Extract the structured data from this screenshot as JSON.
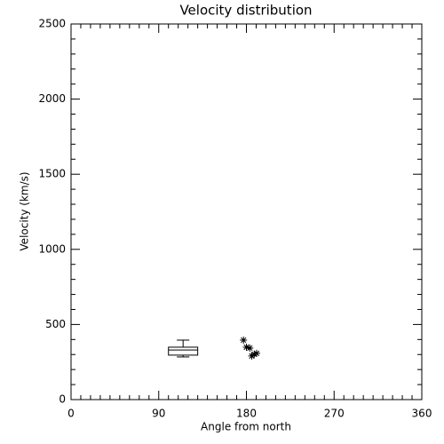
{
  "chart_data": {
    "type": "scatter",
    "title": "Velocity distribution",
    "xlabel": "Angle from north",
    "ylabel": "Velocity (km/s)",
    "x": [
      177,
      180,
      183.5,
      185.5,
      188,
      190.5
    ],
    "values": [
      396,
      349,
      343,
      290,
      302,
      308
    ],
    "marker": "asterisk",
    "color": "#000000",
    "box": {
      "x_left": 100,
      "x_right": 130,
      "min": 284,
      "q1": 296,
      "median": 330,
      "q3": 349,
      "max": 396
    },
    "xlim": [
      0,
      360
    ],
    "xticks": [
      0,
      90,
      180,
      270,
      360
    ],
    "xminorticks": [
      10,
      20,
      30,
      40,
      50,
      60,
      70,
      80,
      100,
      110,
      120,
      130,
      140,
      150,
      160,
      170,
      190,
      200,
      210,
      220,
      230,
      240,
      250,
      260,
      280,
      290,
      300,
      310,
      320,
      330,
      340,
      350
    ],
    "ylim": [
      0,
      2500
    ],
    "yticks": [
      0,
      500,
      1000,
      1500,
      2000,
      2500
    ],
    "yminorticks": [
      100,
      200,
      300,
      400,
      600,
      700,
      800,
      900,
      1100,
      1200,
      1300,
      1400,
      1600,
      1700,
      1800,
      1900,
      2100,
      2200,
      2300,
      2400
    ],
    "grid": false
  }
}
